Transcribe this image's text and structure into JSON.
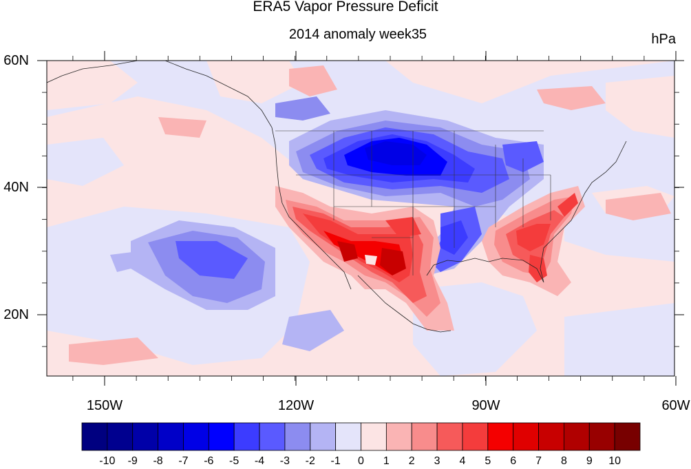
{
  "header": {
    "title": "ERA5 Vapor Pressure Deficit",
    "subtitle": "2014 anomaly week35",
    "units": "hPa"
  },
  "axes": {
    "lat_ticks": [
      "60N",
      "40N",
      "20N"
    ],
    "lon_ticks": [
      "150W",
      "120W",
      "90W",
      "60W"
    ]
  },
  "colorbar": {
    "labels": [
      "-10",
      "-9",
      "-8",
      "-7",
      "-6",
      "-5",
      "-4",
      "-3",
      "-2",
      "-1",
      "0",
      "1",
      "2",
      "3",
      "4",
      "5",
      "6",
      "7",
      "8",
      "9",
      "10"
    ],
    "colors": [
      "#000080",
      "#00008f",
      "#0000a8",
      "#0000c8",
      "#0000e6",
      "#0000ff",
      "#3c3cff",
      "#5a5aff",
      "#8c8cf0",
      "#b4b4f4",
      "#e4e4fa",
      "#fce4e4",
      "#fab4b4",
      "#f88c8c",
      "#f65a5a",
      "#f43c3c",
      "#f40000",
      "#e00000",
      "#c80000",
      "#b00000",
      "#980000",
      "#780000"
    ]
  }
}
